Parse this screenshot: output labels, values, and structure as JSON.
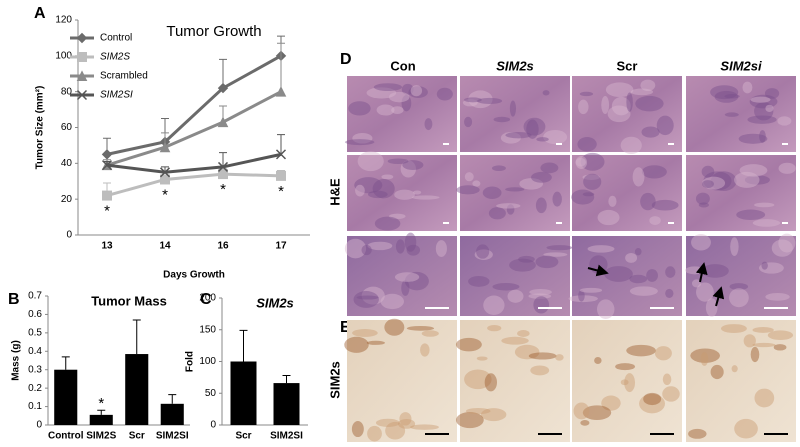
{
  "chart_data": [
    {
      "type": "line",
      "panel": "A",
      "title": "Tumor Growth",
      "x_label": "Days Growth",
      "y_label": "Tumor Size (mm²)",
      "categories": [
        "13",
        "14",
        "16",
        "17"
      ],
      "series": [
        {
          "name": "Control",
          "color": "#6b6b6b",
          "marker": "diamond",
          "values": [
            45,
            52,
            82,
            100
          ],
          "errors": [
            9,
            13,
            16,
            11
          ]
        },
        {
          "name": "SIM2S",
          "color": "#bdbdbd",
          "marker": "square",
          "values": [
            22,
            31,
            34,
            33
          ],
          "errors": [
            7,
            2,
            3,
            3
          ]
        },
        {
          "name": "Scrambled",
          "color": "#8a8a8a",
          "marker": "triangle",
          "values": [
            39,
            49,
            63,
            80
          ],
          "errors": [
            3,
            8,
            9,
            27
          ]
        },
        {
          "name": "SIM2SI",
          "color": "#555555",
          "marker": "x",
          "values": [
            39,
            35,
            38,
            45
          ],
          "errors": [
            2,
            3,
            8,
            11
          ]
        }
      ],
      "significance": [
        "*",
        "*",
        "*",
        "*"
      ],
      "ylim": [
        0,
        120
      ],
      "yticks": [
        0,
        20,
        40,
        60,
        80,
        100,
        120
      ]
    },
    {
      "type": "bar",
      "panel": "B",
      "title": "Tumor Mass",
      "y_label": "Mass (g)",
      "color": "#000000",
      "categories": [
        "Control",
        "SIM2S",
        "Scr",
        "SIM2SI"
      ],
      "values": [
        0.3,
        0.055,
        0.385,
        0.115
      ],
      "errors": [
        0.07,
        0.025,
        0.185,
        0.05
      ],
      "significance": [
        null,
        "*",
        null,
        null
      ],
      "ylim": [
        0,
        0.7
      ],
      "yticks": [
        0,
        0.1,
        0.2,
        0.3,
        0.4,
        0.5,
        0.6,
        0.7
      ]
    },
    {
      "type": "bar",
      "panel": "C",
      "title": "SIM2s",
      "y_label": "Fold",
      "color": "#000000",
      "categories": [
        "Scr",
        "SIM2SI"
      ],
      "values": [
        100,
        66
      ],
      "errors": [
        49,
        12
      ],
      "ylim": [
        0,
        200
      ],
      "yticks": [
        0,
        50,
        100,
        150,
        200
      ]
    }
  ],
  "histology": {
    "panels": [
      "D",
      "E"
    ],
    "columns": [
      "Con",
      "SIM2s",
      "Scr",
      "SIM2si"
    ],
    "row_labels": [
      "H&E",
      "SIM2s"
    ]
  }
}
